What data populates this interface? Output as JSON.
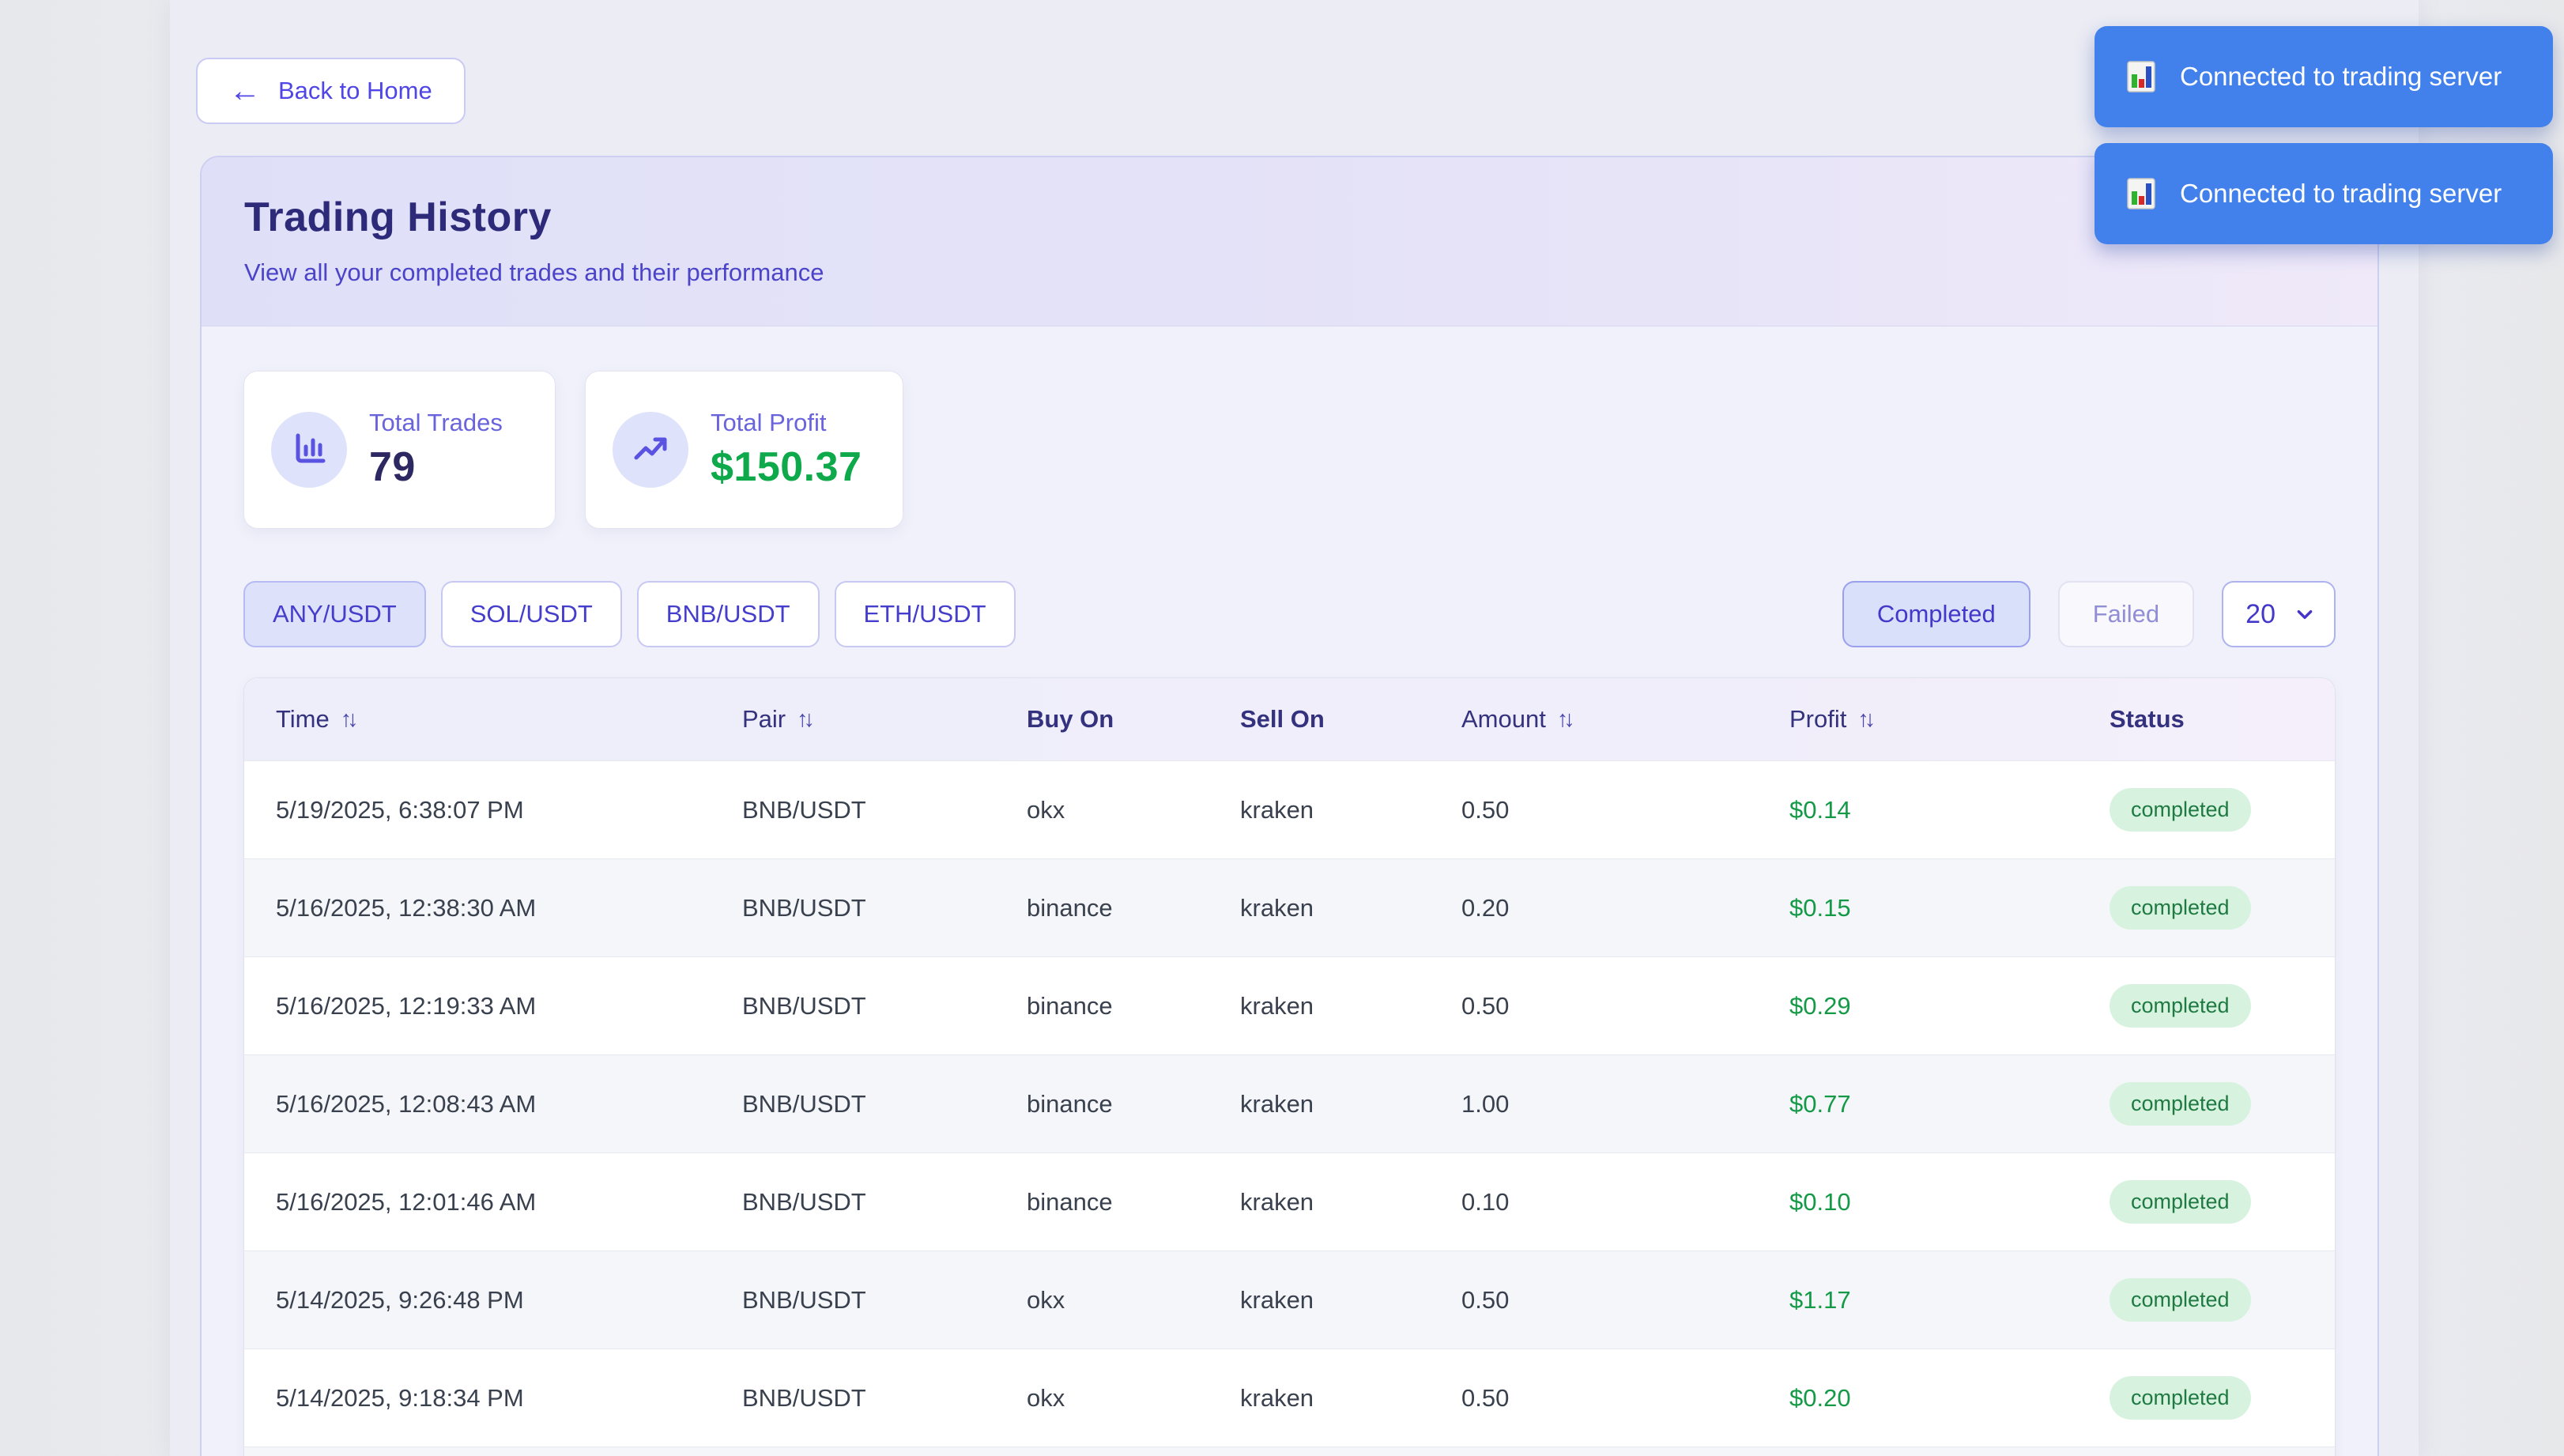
{
  "back_button": {
    "label": "Back to Home",
    "icon": "left-arrow-icon"
  },
  "header": {
    "title": "Trading History",
    "subtitle": "View all your completed trades and their performance"
  },
  "stats": [
    {
      "id": "total-trades",
      "label": "Total Trades",
      "value": "79",
      "icon": "bar-chart-icon",
      "value_color": "#2d2862"
    },
    {
      "id": "total-profit",
      "label": "Total Profit",
      "value": "$150.37",
      "icon": "trending-up-icon",
      "value_color": "#0ea94b"
    }
  ],
  "pair_filters": [
    {
      "label": "ANY/USDT",
      "active": true
    },
    {
      "label": "SOL/USDT",
      "active": false
    },
    {
      "label": "BNB/USDT",
      "active": false
    },
    {
      "label": "ETH/USDT",
      "active": false
    }
  ],
  "status_filters": [
    {
      "label": "Completed",
      "active": true
    },
    {
      "label": "Failed",
      "active": false
    }
  ],
  "page_size_select": {
    "value": "20",
    "icon": "chevron-down-icon"
  },
  "table": {
    "columns": [
      {
        "label": "Time",
        "sortable": true
      },
      {
        "label": "Pair",
        "sortable": true
      },
      {
        "label": "Buy On",
        "sortable": false
      },
      {
        "label": "Sell On",
        "sortable": false
      },
      {
        "label": "Amount",
        "sortable": true
      },
      {
        "label": "Profit",
        "sortable": true
      },
      {
        "label": "Status",
        "sortable": false
      }
    ],
    "rows": [
      {
        "time": "5/19/2025, 6:38:07 PM",
        "pair": "BNB/USDT",
        "buy_on": "okx",
        "sell_on": "kraken",
        "amount": "0.50",
        "profit": "$0.14",
        "status": "completed"
      },
      {
        "time": "5/16/2025, 12:38:30 AM",
        "pair": "BNB/USDT",
        "buy_on": "binance",
        "sell_on": "kraken",
        "amount": "0.20",
        "profit": "$0.15",
        "status": "completed"
      },
      {
        "time": "5/16/2025, 12:19:33 AM",
        "pair": "BNB/USDT",
        "buy_on": "binance",
        "sell_on": "kraken",
        "amount": "0.50",
        "profit": "$0.29",
        "status": "completed"
      },
      {
        "time": "5/16/2025, 12:08:43 AM",
        "pair": "BNB/USDT",
        "buy_on": "binance",
        "sell_on": "kraken",
        "amount": "1.00",
        "profit": "$0.77",
        "status": "completed"
      },
      {
        "time": "5/16/2025, 12:01:46 AM",
        "pair": "BNB/USDT",
        "buy_on": "binance",
        "sell_on": "kraken",
        "amount": "0.10",
        "profit": "$0.10",
        "status": "completed"
      },
      {
        "time": "5/14/2025, 9:26:48 PM",
        "pair": "BNB/USDT",
        "buy_on": "okx",
        "sell_on": "kraken",
        "amount": "0.50",
        "profit": "$1.17",
        "status": "completed"
      },
      {
        "time": "5/14/2025, 9:18:34 PM",
        "pair": "BNB/USDT",
        "buy_on": "okx",
        "sell_on": "kraken",
        "amount": "0.50",
        "profit": "$0.20",
        "status": "completed"
      }
    ]
  },
  "toasts": [
    {
      "message": "Connected to trading server",
      "icon": "bar-chart-emoji-icon"
    },
    {
      "message": "Connected to trading server",
      "icon": "bar-chart-emoji-icon"
    }
  ],
  "colors": {
    "accent": "#4f46e5",
    "title": "#2e2a7a",
    "toast_blue": "#4281ec",
    "profit_green": "#149a47",
    "badge_bg": "#d7f3e0",
    "badge_text": "#1f7a42",
    "header_gradient_start": "#dfe0f8",
    "header_gradient_end": "#efe9f9"
  }
}
